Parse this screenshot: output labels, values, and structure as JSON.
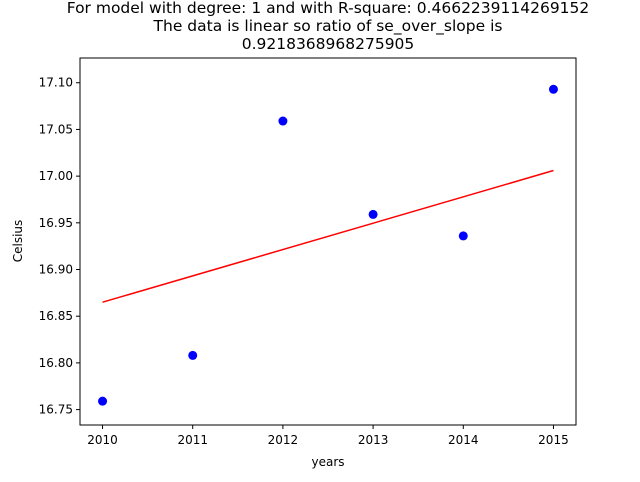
{
  "chart_data": {
    "type": "scatter",
    "title_lines": [
      "For model with degree: 1 and with R-square: 0.4662239114269152",
      "The data is linear so ratio of se_over_slope is",
      "0.9218368968275905"
    ],
    "xlabel": "years",
    "ylabel": "Celsius",
    "xlim": [
      2009.75,
      2015.25
    ],
    "ylim": [
      16.7335,
      17.1265
    ],
    "xticks": [
      2010,
      2011,
      2012,
      2013,
      2014,
      2015
    ],
    "xtick_labels": [
      "2010",
      "2011",
      "2012",
      "2013",
      "2014",
      "2015"
    ],
    "yticks": [
      16.75,
      16.8,
      16.85,
      16.9,
      16.95,
      17.0,
      17.05,
      17.1
    ],
    "ytick_labels": [
      "16.75",
      "16.80",
      "16.85",
      "16.90",
      "16.95",
      "17.00",
      "17.05",
      "17.10"
    ],
    "grid": false,
    "points": {
      "x": [
        2010,
        2011,
        2012,
        2013,
        2014,
        2015
      ],
      "y": [
        16.759,
        16.808,
        17.059,
        16.959,
        16.936,
        17.093
      ],
      "color": "#0000ff"
    },
    "fit_line": {
      "x": [
        2010,
        2015
      ],
      "y": [
        16.865,
        17.006
      ],
      "color": "#ff0000"
    }
  }
}
